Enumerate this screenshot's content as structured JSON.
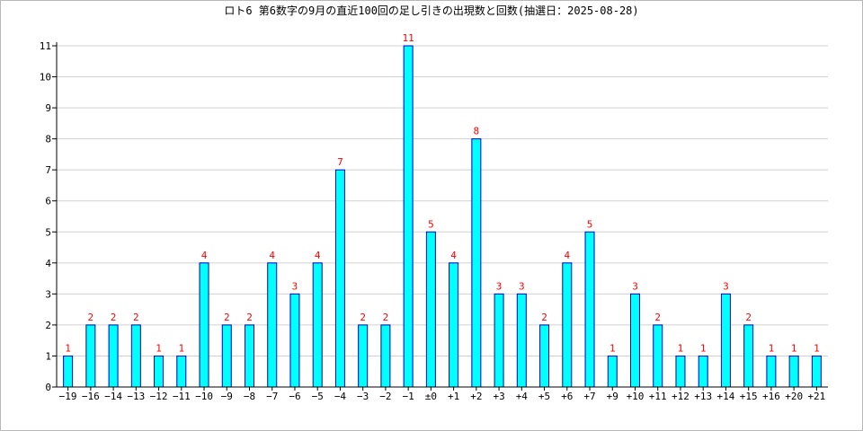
{
  "chart_data": {
    "type": "bar",
    "title": "ロト6 第6数字の9月の直近100回の足し引きの出現数と回数(抽選日：2025-08-28)",
    "xlabel": "",
    "ylabel": "",
    "categories": [
      "−19",
      "−16",
      "−14",
      "−13",
      "−12",
      "−11",
      "−10",
      "−9",
      "−8",
      "−7",
      "−6",
      "−5",
      "−4",
      "−3",
      "−2",
      "−1",
      "±0",
      "+1",
      "+2",
      "+3",
      "+4",
      "+5",
      "+6",
      "+7",
      "+9",
      "+10",
      "+11",
      "+12",
      "+13",
      "+14",
      "+15",
      "+16",
      "+20",
      "+21"
    ],
    "values": [
      1,
      2,
      2,
      2,
      1,
      1,
      4,
      2,
      2,
      4,
      3,
      4,
      7,
      2,
      2,
      11,
      5,
      4,
      8,
      3,
      3,
      2,
      4,
      5,
      1,
      3,
      2,
      1,
      1,
      3,
      2,
      1,
      1,
      1
    ],
    "ylim": [
      0,
      11
    ],
    "yticks": [
      "0",
      "1",
      "2",
      "3",
      "4",
      "5",
      "6",
      "7",
      "8",
      "9",
      "10",
      "11"
    ],
    "grid": true,
    "colors": {
      "bar_fill": "#00FFFF",
      "bar_stroke": "#0000CC",
      "value_label": "#FF0000",
      "grid": "#D0D0D0",
      "axis": "#000000"
    }
  }
}
